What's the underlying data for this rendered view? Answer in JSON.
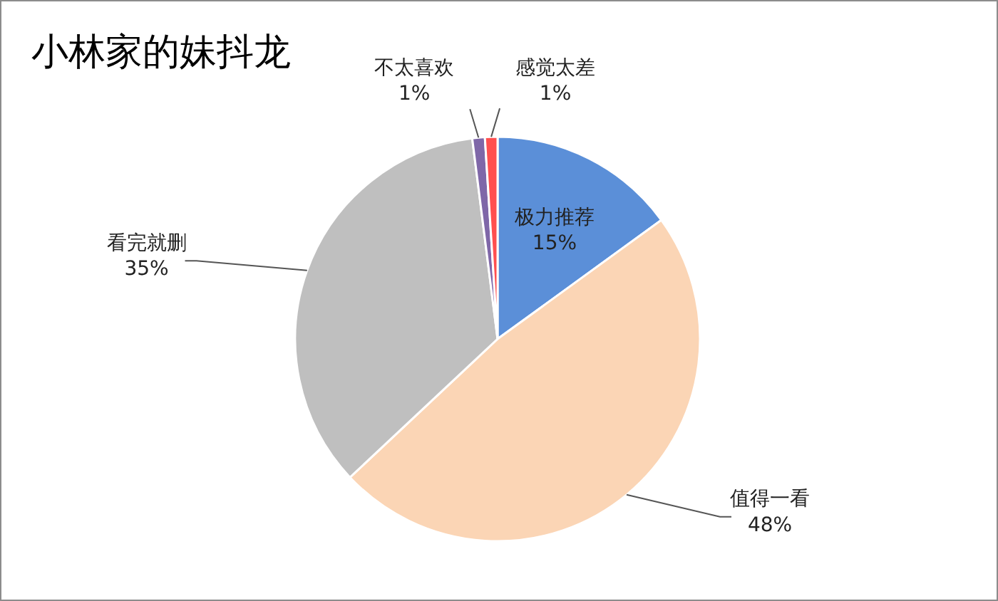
{
  "chart_data": {
    "type": "pie",
    "title": "小林家的妹抖龙",
    "categories": [
      "极力推荐",
      "值得一看",
      "看完就删",
      "不太喜欢",
      "感觉太差"
    ],
    "values": [
      15,
      48,
      35,
      1,
      1
    ],
    "value_labels": [
      "15%",
      "48%",
      "35%",
      "1%",
      "1%"
    ],
    "colors": [
      "#5b8fd8",
      "#fbd5b5",
      "#bfbfbf",
      "#7f67a8",
      "#ff4f4f"
    ],
    "legend": false
  }
}
